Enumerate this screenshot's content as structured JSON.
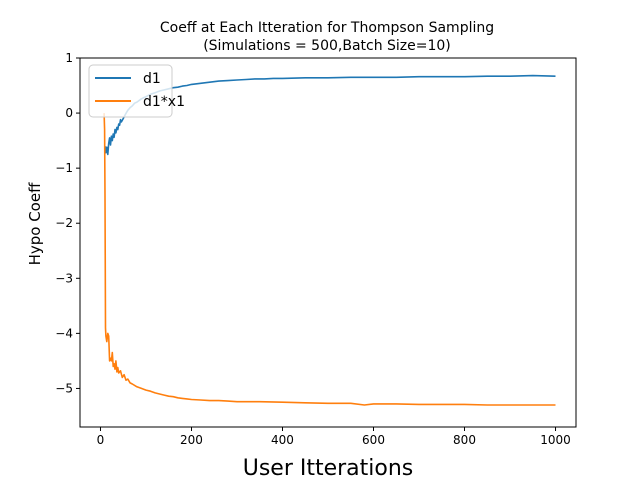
{
  "chart_data": {
    "type": "line",
    "title": "Coeff at Each Itteration for Thompson Sampling",
    "subtitle": "(Simulations = 500,Batch Size=10)",
    "xlabel": "User Itterations",
    "ylabel": "Hypo Coeff",
    "xlim": [
      -45,
      1045
    ],
    "ylim": [
      -5.7,
      1.0
    ],
    "xticks": [
      0,
      200,
      400,
      600,
      800,
      1000
    ],
    "xtick_labels": [
      "0",
      "200",
      "400",
      "600",
      "800",
      "1000"
    ],
    "yticks": [
      1,
      0,
      -1,
      -2,
      -3,
      -4,
      -5
    ],
    "ytick_labels": [
      "1",
      "0",
      "−1",
      "−2",
      "−3",
      "−4",
      "−5"
    ],
    "grid": false,
    "legend_position": "top-left",
    "series": [
      {
        "name": "d1",
        "color": "#1f77b4",
        "x": [
          10,
          12,
          14,
          16,
          18,
          20,
          22,
          24,
          26,
          28,
          30,
          32,
          34,
          36,
          38,
          40,
          42,
          44,
          46,
          50,
          55,
          60,
          65,
          70,
          75,
          80,
          90,
          100,
          110,
          120,
          130,
          140,
          150,
          160,
          170,
          180,
          190,
          200,
          220,
          240,
          260,
          280,
          300,
          320,
          340,
          360,
          380,
          400,
          450,
          500,
          550,
          600,
          650,
          700,
          750,
          800,
          850,
          900,
          950,
          1000
        ],
        "y": [
          -0.6,
          -0.72,
          -0.62,
          -0.75,
          -0.55,
          -0.45,
          -0.58,
          -0.42,
          -0.5,
          -0.38,
          -0.44,
          -0.3,
          -0.36,
          -0.26,
          -0.3,
          -0.2,
          -0.22,
          -0.12,
          -0.16,
          -0.1,
          -0.02,
          0.05,
          0.1,
          0.13,
          0.18,
          0.2,
          0.26,
          0.3,
          0.34,
          0.37,
          0.4,
          0.42,
          0.44,
          0.46,
          0.47,
          0.49,
          0.5,
          0.52,
          0.54,
          0.56,
          0.58,
          0.59,
          0.6,
          0.61,
          0.62,
          0.62,
          0.63,
          0.63,
          0.64,
          0.64,
          0.65,
          0.65,
          0.65,
          0.66,
          0.66,
          0.66,
          0.67,
          0.67,
          0.68,
          0.67
        ]
      },
      {
        "name": "d1*x1",
        "color": "#ff7f0e",
        "x": [
          8,
          9,
          10,
          11,
          12,
          14,
          16,
          18,
          20,
          22,
          24,
          26,
          28,
          30,
          32,
          34,
          36,
          38,
          40,
          44,
          48,
          52,
          56,
          60,
          65,
          70,
          80,
          90,
          100,
          110,
          120,
          130,
          140,
          150,
          160,
          170,
          180,
          190,
          200,
          220,
          240,
          260,
          280,
          300,
          350,
          400,
          450,
          500,
          550,
          580,
          600,
          650,
          700,
          750,
          800,
          850,
          900,
          950,
          1000
        ],
        "y": [
          0.0,
          -0.3,
          -1.5,
          -3.9,
          -4.05,
          -4.15,
          -4.0,
          -4.05,
          -4.5,
          -4.45,
          -4.5,
          -4.35,
          -4.6,
          -4.55,
          -4.65,
          -4.5,
          -4.7,
          -4.62,
          -4.72,
          -4.68,
          -4.8,
          -4.75,
          -4.85,
          -4.83,
          -4.9,
          -4.92,
          -4.97,
          -5.0,
          -5.03,
          -5.05,
          -5.08,
          -5.1,
          -5.12,
          -5.14,
          -5.15,
          -5.17,
          -5.18,
          -5.19,
          -5.2,
          -5.21,
          -5.22,
          -5.22,
          -5.23,
          -5.24,
          -5.24,
          -5.25,
          -5.26,
          -5.27,
          -5.27,
          -5.3,
          -5.28,
          -5.28,
          -5.29,
          -5.29,
          -5.29,
          -5.3,
          -5.3,
          -5.3,
          -5.3
        ]
      }
    ]
  }
}
